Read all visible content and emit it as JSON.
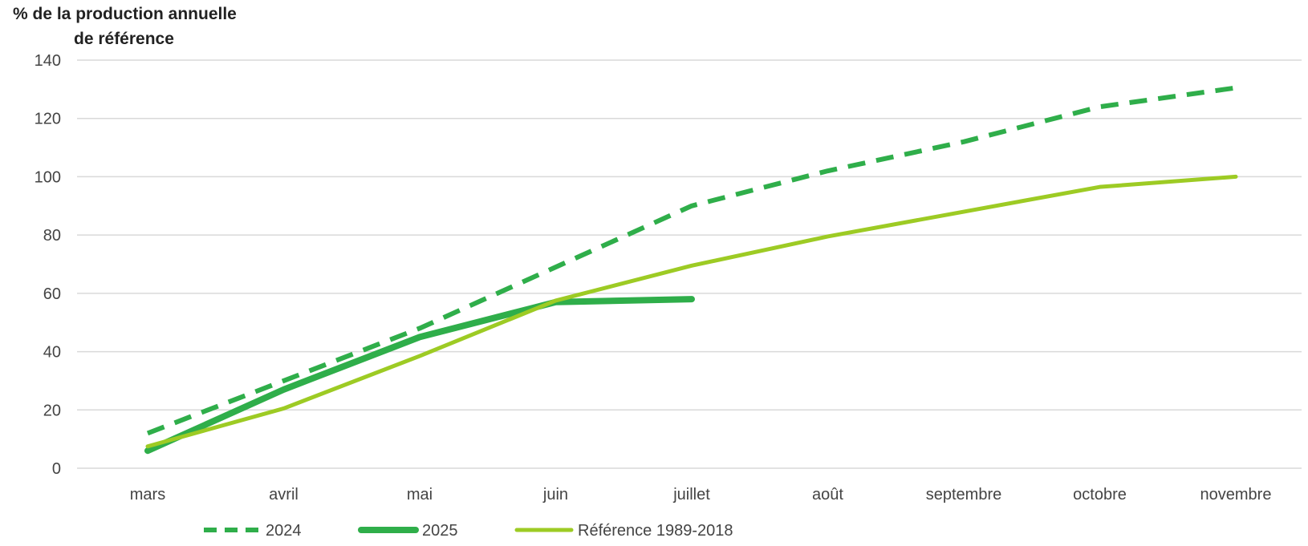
{
  "chart_data": {
    "type": "line",
    "title": "",
    "ylabel_lines": [
      "% de  la production  annuelle",
      "de référence"
    ],
    "xlabel": "",
    "categories": [
      "mars",
      "avril",
      "mai",
      "juin",
      "juillet",
      "août",
      "septembre",
      "octobre",
      "novembre"
    ],
    "ylim": [
      0,
      140
    ],
    "yticks": [
      0,
      20,
      40,
      60,
      80,
      100,
      120,
      140
    ],
    "grid": true,
    "legend_position": "bottom",
    "series": [
      {
        "name": "2024",
        "style": "dashed",
        "color": "#2fae4a",
        "values": [
          12,
          30,
          48,
          69,
          90,
          102,
          112,
          124,
          130.5
        ]
      },
      {
        "name": "2025",
        "style": "solid-thick",
        "color": "#2fae4a",
        "values": [
          6,
          27,
          45,
          57,
          58,
          null,
          null,
          null,
          null
        ]
      },
      {
        "name": "Référence 1989-2018",
        "style": "solid",
        "color": "#9dcb24",
        "values": [
          7.5,
          20.5,
          38.5,
          57.5,
          69.5,
          79.5,
          88,
          96.5,
          100
        ]
      }
    ]
  }
}
